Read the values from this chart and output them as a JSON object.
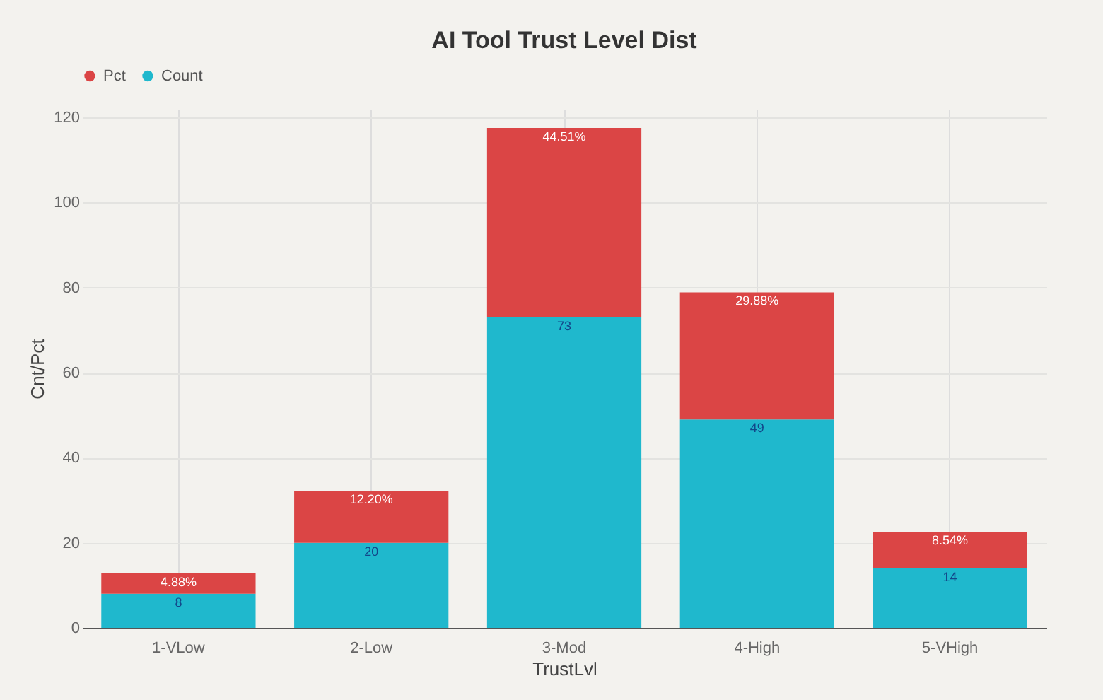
{
  "chart_data": {
    "type": "bar",
    "title": "AI Tool Trust Level Dist",
    "xlabel": "TrustLvl",
    "ylabel": "Cnt/Pct",
    "categories": [
      "1-VLow",
      "2-Low",
      "3-Mod",
      "4-High",
      "5-VHigh"
    ],
    "stacked": true,
    "series": [
      {
        "name": "Count",
        "color": "#1fb8cd",
        "values": [
          8,
          20,
          73,
          49,
          14
        ],
        "value_labels": [
          "8",
          "20",
          "73",
          "49",
          "14"
        ]
      },
      {
        "name": "Pct",
        "color": "#db4545",
        "values": [
          4.88,
          12.2,
          44.51,
          29.88,
          8.54
        ],
        "value_labels": [
          "4.88%",
          "12.20%",
          "44.51%",
          "29.88%",
          "8.54%"
        ]
      }
    ],
    "ylim": [
      0,
      122
    ],
    "yticks": [
      0,
      20,
      40,
      60,
      80,
      100,
      120
    ],
    "grid": true,
    "legend": "top"
  }
}
